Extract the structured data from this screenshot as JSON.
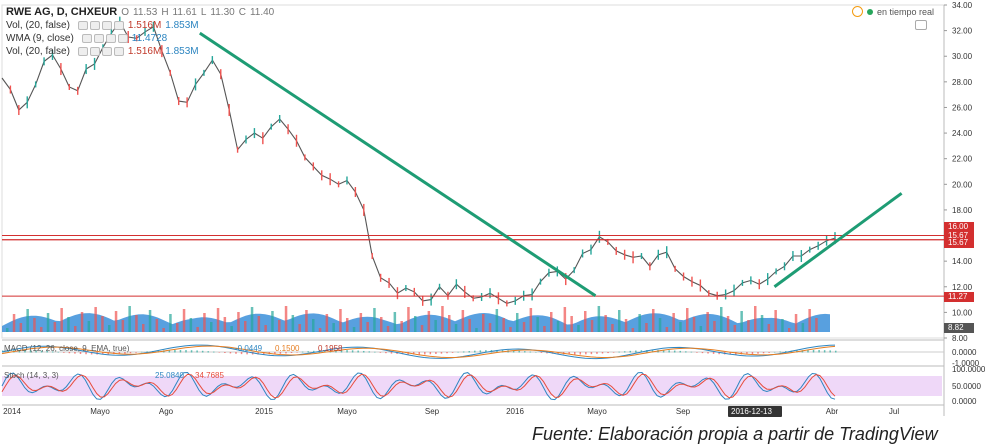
{
  "legend": {
    "title": "RWE AG, D, CHXEUR",
    "open_label": "O",
    "open": "11.53",
    "high_label": "H",
    "high": "11.61",
    "low_label": "L",
    "low": "11.30",
    "close_label": "C",
    "close": "11.40",
    "vol1_label": "Vol, (20, false)",
    "vol1_a": "1.516M",
    "vol1_b": "1.853M",
    "wma_label": "WMA (9, close)",
    "wma_value": "11.4728",
    "vol2_label": "Vol, (20, false)",
    "vol2_a": "1.516M",
    "vol2_b": "1.853M"
  },
  "live": {
    "label": "en tiempo real"
  },
  "caption": "Fuente: Elaboración propia a partir de TradingView",
  "macd_label": "MACD (12, 26, close, 9, EMA, true)",
  "macd_values": [
    "-0.0449",
    "0.1500",
    "0.1958"
  ],
  "stoch_label": "Stoch (14, 3, 3)",
  "stoch_values": [
    "25.0840",
    "34.7685"
  ],
  "colors": {
    "up": "#26a69a",
    "down": "#ef5350",
    "trend": "#1e9c74",
    "hline": "#d32f2f",
    "volume_area": "#3b8fd9",
    "stoch_band": "#e8c8f5"
  },
  "chart_data": [
    {
      "type": "line",
      "title": "RWE AG, D, CHXEUR",
      "ylim": [
        8,
        34
      ],
      "yticks": [
        "34.00",
        "32.00",
        "30.00",
        "28.00",
        "26.00",
        "24.00",
        "22.00",
        "20.00",
        "18.00",
        "16.00",
        "14.00",
        "12.00",
        "10.00",
        "8.00"
      ],
      "x_labels": [
        "2014",
        "Mayo",
        "Ago",
        "2015",
        "Mayo",
        "Sep",
        "2016",
        "Mayo",
        "Sep",
        "2016-12-13",
        "Abr",
        "Jul"
      ],
      "series": [
        {
          "values": [
            28.3,
            27.4,
            25.8,
            26.4,
            27.8,
            29.6,
            30.1,
            29.0,
            27.6,
            27.3,
            29.0,
            29.4,
            30.7,
            31.8,
            32.7,
            31.5,
            31.4,
            31.9,
            32.3,
            30.4,
            28.7,
            26.5,
            26.4,
            27.8,
            28.7,
            29.7,
            28.6,
            25.8,
            22.7,
            23.5,
            24.0,
            23.6,
            24.5,
            25.1,
            24.3,
            23.4,
            22.1,
            21.4,
            20.7,
            20.4,
            20.0,
            20.3,
            19.4,
            18.0,
            14.4,
            12.7,
            12.3,
            11.5,
            11.9,
            11.6,
            10.9,
            11.0,
            12.0,
            11.3,
            12.2,
            11.6,
            11.1,
            11.2,
            11.5,
            11.1,
            10.7,
            10.9,
            11.3,
            11.4,
            12.4,
            13.1,
            13.2,
            12.6,
            13.3,
            14.6,
            14.9,
            15.9,
            15.5,
            14.8,
            14.5,
            14.3,
            14.4,
            13.6,
            14.5,
            14.7,
            13.4,
            12.8,
            12.4,
            12.1,
            11.5,
            11.3,
            11.4,
            11.7,
            12.3,
            12.5,
            12.2,
            12.6,
            13.2,
            13.6,
            14.4,
            14.4,
            14.9,
            15.2,
            15.6,
            15.8
          ]
        }
      ],
      "horizontal_lines": [
        16.0,
        15.67,
        15.67,
        11.27
      ],
      "price_labels": [
        "16.00",
        "15.67",
        "15.67",
        "11.27"
      ],
      "volume_label": "8.82",
      "trendlines": [
        {
          "from": [
            0.21,
            31.8
          ],
          "to": [
            0.63,
            11.3
          ]
        },
        {
          "from": [
            0.82,
            12.0
          ],
          "to": [
            0.955,
            19.3
          ]
        }
      ]
    }
  ],
  "macd_axis": [
    "0.0000",
    "-1.0000"
  ],
  "stoch_axis": [
    "100.0000",
    "50.0000",
    "0.0000"
  ]
}
